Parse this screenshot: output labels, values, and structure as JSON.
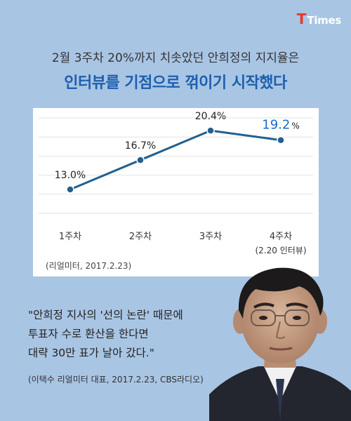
{
  "brand": {
    "logo_t": "T",
    "logo_rest": "Times"
  },
  "headline": {
    "line1": "2월 3주차 20%까지 치솟았던 안희정의 지지율은",
    "line2": "인터뷰를 기점으로 꺾이기 시작했다"
  },
  "chart_data": {
    "type": "line",
    "categories": [
      "1주차",
      "2주차",
      "3주차",
      "4주차"
    ],
    "category_sublabels": [
      "",
      "",
      "",
      "(2.20 인터뷰)"
    ],
    "values": [
      13.0,
      16.7,
      20.4,
      19.2
    ],
    "value_labels": [
      "13.0%",
      "16.7%",
      "20.4%",
      "19.2"
    ],
    "highlight_index": 3,
    "highlight_suffix": "%",
    "ylim": [
      10,
      22
    ],
    "grid": true,
    "title": "",
    "xlabel": "",
    "ylabel": "",
    "colors": {
      "line": "#21608f",
      "highlight": "#1a6dc2",
      "grid": "#e2e2e2"
    },
    "source": "(리얼미터, 2017.2.23)"
  },
  "quote": {
    "text": "\"안희정 지사의 '선의 논란' 때문에\n투표자 수로 환산을 한다면\n대략 30만 표가 날아 갔다.\"",
    "attribution": "(이택수 리얼미터 대표, 2017.2.23, CBS라디오)"
  },
  "photo": {
    "icon": "portrait-photo-icon"
  }
}
